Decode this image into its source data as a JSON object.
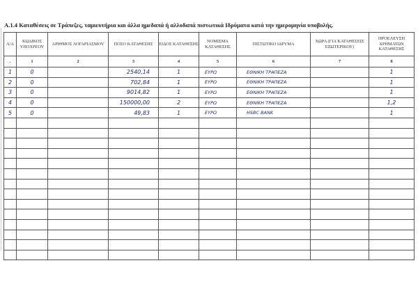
{
  "title": "A.1.4 Καταθέσεις σε Τράπεζες, ταμιευτήρια και άλλα ημεδαπά ή αλλοδαπά πιστωτικά Ιδρύματα κατά την ημερομηνία υποβολής.",
  "columns": [
    "Α/Α",
    "ΚΩΔΙΚΟΣ ΥΠΟΧΡΕΟΥ",
    "ΑΡΙΘΜΟΣ ΛΟΓΑΡΙΑΣΜΟΥ",
    "ΠΟΣΟ ΚΑΤΑΘΕΣΗΣ",
    "ΕΙΔΟΣ ΚΑΤΑΘΕΣΗΣ",
    "ΝΟΜΙΣΜΑ ΚΑΤΑΘΕΣΗΣ",
    "ΠΙΣΤΩΤΙΚΟ ΙΔΡΥΜΑ",
    "ΧΩΡΑ (ΓΙΑ ΚΑΤΑΘΕΣΕΙΣ ΕΞΩΤΕΡΙΚΟΥ)",
    "ΠΡΟΕΛΕΥΣΗ ΧΡΗΜΑΤΩΝ ΚΑΤΑΘΕΣΗΣ"
  ],
  "column_numbers": [
    ".",
    "1",
    "2",
    "3",
    "4",
    "5",
    "6",
    "7",
    "8"
  ],
  "rows": [
    [
      "1",
      "0",
      "",
      "2540,14",
      "1",
      "ΕΥΡΩ",
      "ΕΘΝΙΚΗ ΤΡΑΠΕΖΑ",
      "",
      "1"
    ],
    [
      "2",
      "0",
      "",
      "702,84",
      "1",
      "ΕΥΡΩ",
      "ΕΘΝΙΚΗ ΤΡΑΠΕΖΑ",
      "",
      "1"
    ],
    [
      "3",
      "0",
      "",
      "9014,82",
      "1",
      "ΕΥΡΩ",
      "ΕΘΝΙΚΗ ΤΡΑΠΕΖΑ",
      "",
      "1"
    ],
    [
      "4",
      "0",
      "",
      "150000,00",
      "2",
      "ΕΥΡΩ",
      "ΕΘΝΙΚΗ ΤΡΑΠΕΖΑ",
      "",
      "1,2"
    ],
    [
      "5",
      "0",
      "",
      "49,83",
      "1",
      "ΕΥΡΩ",
      "HSBC BANK",
      "",
      "1"
    ]
  ]
}
